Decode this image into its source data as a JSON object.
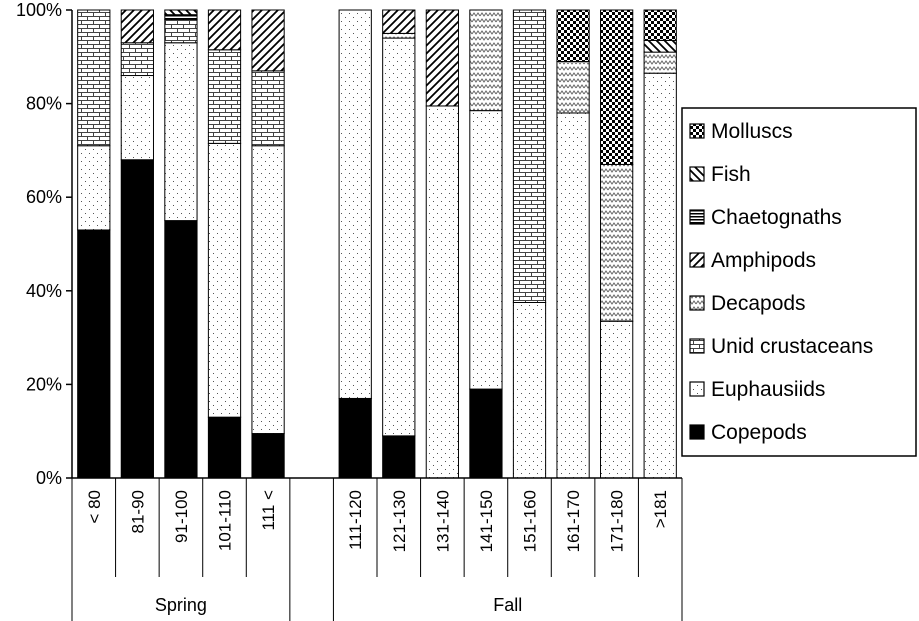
{
  "chart_data": {
    "type": "bar",
    "stacked": true,
    "percent": true,
    "ylim": [
      0,
      100
    ],
    "yticks": [
      "0%",
      "20%",
      "40%",
      "60%",
      "80%",
      "100%"
    ],
    "categories": [
      "< 80",
      "81-90",
      "91-100",
      "101-110",
      "111 <",
      "",
      "111-120",
      "121-130",
      "131-140",
      "141-150",
      "151-160",
      "161-170",
      "171-180",
      ">181"
    ],
    "groups": [
      {
        "label": "Spring",
        "from": 0,
        "to": 5
      },
      {
        "label": "Fall",
        "from": 6,
        "to": 14
      }
    ],
    "legend_position": "right",
    "series": [
      {
        "name": "Copepods",
        "pattern": "solid",
        "values": [
          53,
          68,
          55,
          13,
          9.5,
          0,
          17,
          9,
          0,
          19,
          0,
          0,
          0,
          0
        ]
      },
      {
        "name": "Euphausiids",
        "pattern": "dots",
        "values": [
          18,
          18,
          38,
          58.5,
          61.5,
          0,
          83,
          85,
          79.5,
          59.5,
          37.5,
          78,
          33.5,
          86.5
        ]
      },
      {
        "name": "Unid crustaceans",
        "pattern": "brick",
        "values": [
          29,
          7,
          5,
          20,
          16,
          0,
          0,
          0,
          0,
          0,
          62.5,
          0,
          0,
          0
        ]
      },
      {
        "name": "Decapods",
        "pattern": "zigzag",
        "values": [
          0,
          0,
          0,
          0,
          0,
          0,
          0,
          1,
          0,
          21.5,
          0,
          11,
          33.5,
          4.5
        ]
      },
      {
        "name": "Amphipods",
        "pattern": "diag-up",
        "values": [
          0,
          7,
          0,
          8.5,
          13,
          0,
          0,
          5,
          20.5,
          0,
          0,
          0,
          0,
          0
        ]
      },
      {
        "name": "Chaetognaths",
        "pattern": "hlines",
        "values": [
          0,
          0,
          1,
          0,
          0,
          0,
          0,
          0,
          0,
          0,
          0,
          0,
          0,
          0
        ]
      },
      {
        "name": "Fish",
        "pattern": "diag-down",
        "values": [
          0,
          0,
          1,
          0,
          0,
          0,
          0,
          0,
          0,
          0,
          0,
          0,
          0,
          2.5
        ]
      },
      {
        "name": "Molluscs",
        "pattern": "checker",
        "values": [
          0,
          0,
          0,
          0,
          0,
          0,
          0,
          0,
          0,
          0,
          0,
          11,
          33,
          6.5
        ]
      }
    ],
    "legend_order": [
      "Molluscs",
      "Fish",
      "Chaetognaths",
      "Amphipods",
      "Decapods",
      "Unid crustaceans",
      "Euphausiids",
      "Copepods"
    ]
  }
}
